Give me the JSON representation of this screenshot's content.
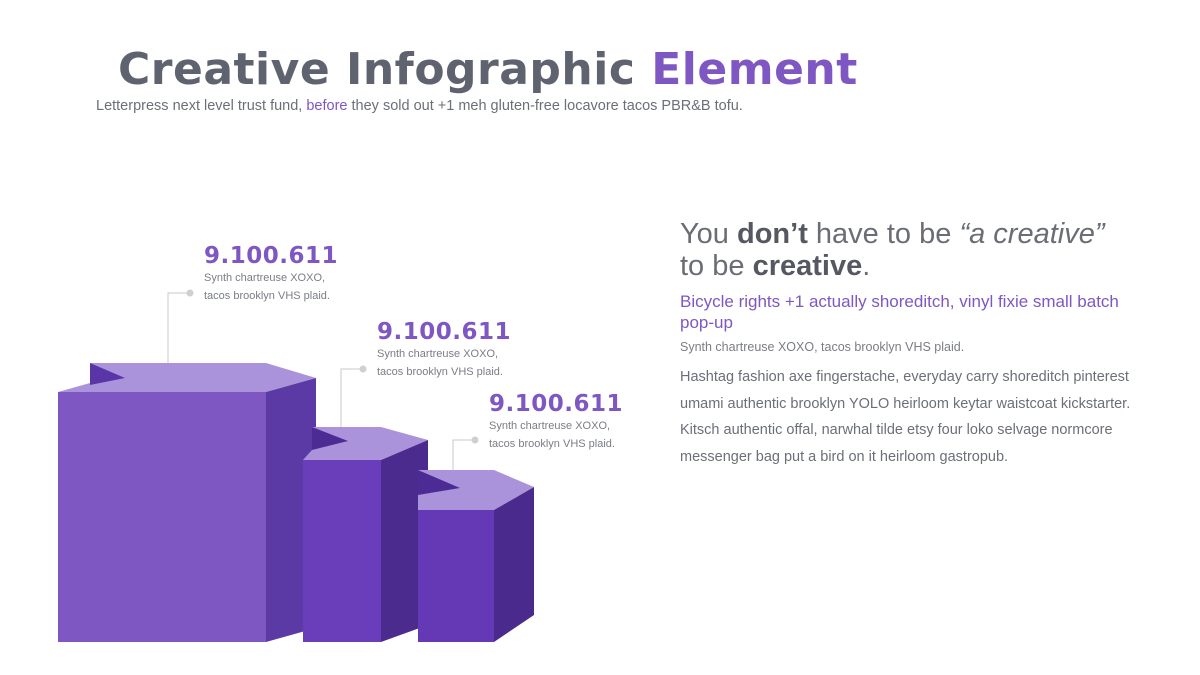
{
  "header": {
    "title_main": "Creative Infographic",
    "title_accent": "Element",
    "subtitle_before": "Letterpress next level trust fund,",
    "subtitle_accent": "before",
    "subtitle_after": "they sold out +1 meh gluten-free locavore tacos PBR&B tofu."
  },
  "callouts": [
    {
      "value": "9.100.611",
      "lines": [
        "Synth chartreuse XOXO,",
        "tacos brooklyn VHS plaid."
      ]
    },
    {
      "value": "9.100.611",
      "lines": [
        "Synth chartreuse XOXO,",
        "tacos brooklyn VHS plaid."
      ]
    },
    {
      "value": "9.100.611",
      "lines": [
        "Synth chartreuse XOXO,",
        "tacos brooklyn VHS plaid."
      ]
    }
  ],
  "panel": {
    "heading": [
      "You",
      "don’t",
      "have to be",
      "“a creative”",
      "to be",
      "creative",
      "."
    ],
    "subheading": "Bicycle rights +1 actually shoreditch, vinyl fixie small batch pop-up",
    "caption": "Synth chartreuse XOXO, tacos brooklyn VHS plaid.",
    "body": "Hashtag fashion axe fingerstache, everyday carry shoreditch pinterest umami authentic brooklyn YOLO heirloom keytar waistcoat kickstarter. Kitsch authentic offal, narwhal tilde etsy four loko selvage normcore messenger bag put a bird on it heirloom gastropub."
  }
}
